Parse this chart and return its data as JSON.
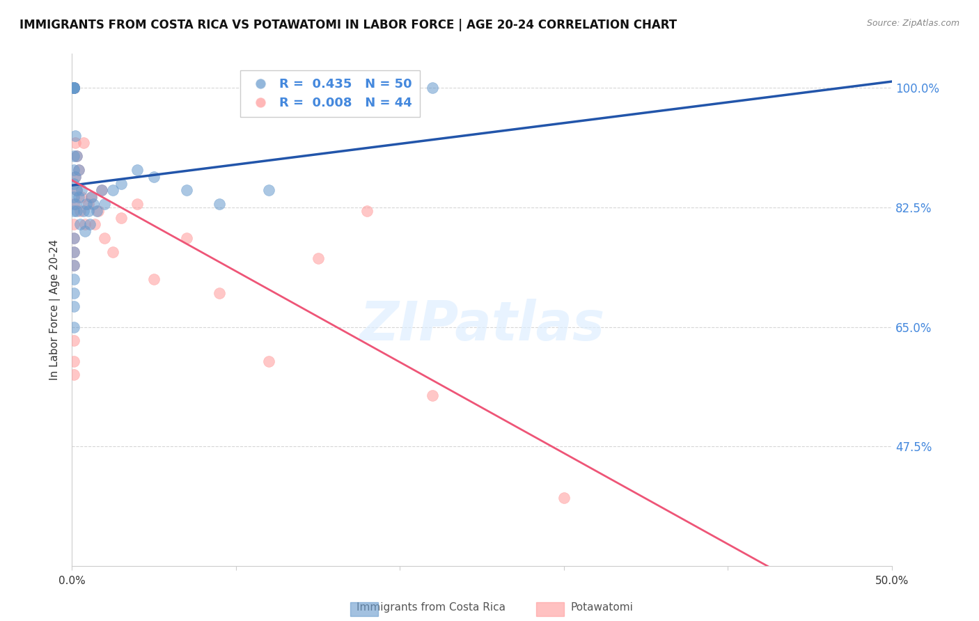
{
  "title": "IMMIGRANTS FROM COSTA RICA VS POTAWATOMI IN LABOR FORCE | AGE 20-24 CORRELATION CHART",
  "source": "Source: ZipAtlas.com",
  "ylabel": "In Labor Force | Age 20-24",
  "yticks": [
    0.475,
    0.65,
    0.825,
    1.0
  ],
  "ytick_labels": [
    "47.5%",
    "65.0%",
    "82.5%",
    "100.0%"
  ],
  "legend1_r": "0.435",
  "legend1_n": "50",
  "legend2_r": "0.008",
  "legend2_n": "44",
  "legend_label1": "Immigrants from Costa Rica",
  "legend_label2": "Potawatomi",
  "blue_color": "#6699CC",
  "pink_color": "#FF9999",
  "trend_blue": "#2255AA",
  "trend_pink": "#EE5577",
  "watermark": "ZIPatlas",
  "blue_x": [
    0.001,
    0.001,
    0.001,
    0.001,
    0.001,
    0.001,
    0.001,
    0.001,
    0.001,
    0.001,
    0.001,
    0.001,
    0.001,
    0.001,
    0.001,
    0.002,
    0.002,
    0.002,
    0.003,
    0.003,
    0.003,
    0.004,
    0.004,
    0.005,
    0.006,
    0.007,
    0.008,
    0.009,
    0.01,
    0.011,
    0.012,
    0.013,
    0.015,
    0.018,
    0.02,
    0.025,
    0.03,
    0.04,
    0.05,
    0.07,
    0.09,
    0.12,
    0.22,
    0.001,
    0.001,
    0.001,
    0.001,
    0.001,
    0.001,
    0.001
  ],
  "blue_y": [
    1.0,
    1.0,
    1.0,
    1.0,
    1.0,
    1.0,
    1.0,
    1.0,
    1.0,
    1.0,
    0.9,
    0.88,
    0.86,
    0.84,
    0.82,
    0.93,
    0.87,
    0.83,
    0.9,
    0.85,
    0.82,
    0.88,
    0.84,
    0.8,
    0.85,
    0.82,
    0.79,
    0.83,
    0.82,
    0.8,
    0.84,
    0.83,
    0.82,
    0.85,
    0.83,
    0.85,
    0.86,
    0.88,
    0.87,
    0.85,
    0.83,
    0.85,
    1.0,
    0.78,
    0.76,
    0.74,
    0.72,
    0.7,
    0.68,
    0.65
  ],
  "pink_x": [
    0.001,
    0.001,
    0.001,
    0.001,
    0.001,
    0.001,
    0.001,
    0.001,
    0.001,
    0.001,
    0.002,
    0.002,
    0.003,
    0.003,
    0.004,
    0.005,
    0.006,
    0.007,
    0.008,
    0.01,
    0.012,
    0.014,
    0.016,
    0.018,
    0.02,
    0.025,
    0.03,
    0.04,
    0.05,
    0.07,
    0.09,
    0.12,
    0.15,
    0.18,
    0.22,
    0.3,
    0.001,
    0.001,
    0.001,
    0.001,
    0.001,
    0.001,
    0.001,
    0.001
  ],
  "pink_y": [
    1.0,
    1.0,
    1.0,
    1.0,
    1.0,
    1.0,
    1.0,
    1.0,
    1.0,
    1.0,
    0.92,
    0.87,
    0.9,
    0.85,
    0.88,
    0.82,
    0.84,
    0.92,
    0.8,
    0.83,
    0.84,
    0.8,
    0.82,
    0.85,
    0.78,
    0.76,
    0.81,
    0.83,
    0.72,
    0.78,
    0.7,
    0.6,
    0.75,
    0.82,
    0.55,
    0.4,
    0.83,
    0.8,
    0.78,
    0.76,
    0.74,
    0.63,
    0.6,
    0.58
  ],
  "xlim": [
    0.0,
    0.5
  ],
  "ylim": [
    0.3,
    1.05
  ]
}
